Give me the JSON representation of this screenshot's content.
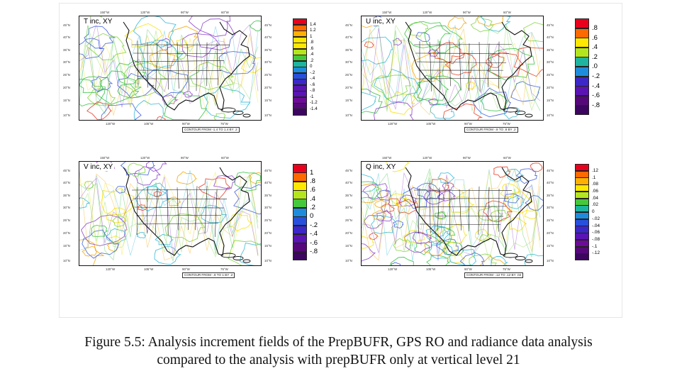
{
  "figure": {
    "lon_top": [
      "150°W",
      "120°W",
      "90°W",
      "60°W"
    ],
    "lon_bottom": [
      "120°W",
      "105°W",
      "90°W",
      "75°W"
    ],
    "lat_labels": [
      "45°N",
      "40°N",
      "35°N",
      "30°N",
      "25°N",
      "20°N",
      "15°N",
      "10°N"
    ],
    "panels": [
      {
        "title": "T inc, XY",
        "colorbar_labels": [
          "1.4",
          "1.2",
          "1",
          ".8",
          ".6",
          ".4",
          ".2",
          "0",
          "-.2",
          "-.4",
          "-.6",
          "-.8",
          "-1",
          "-1.2",
          "-1.4"
        ],
        "contour_info": "CONTOUR FROM -1.4 TO 1.4 BY .2"
      },
      {
        "title": "U inc, XY",
        "colorbar_labels": [
          ".8",
          ".6",
          ".4",
          ".2",
          ".0",
          "-.2",
          "-.4",
          "-.6",
          "-.8"
        ],
        "contour_info": "CONTOUR FROM -.8 TO .8 BY .2"
      },
      {
        "title": "V inc, XY",
        "colorbar_labels": [
          "1",
          ".8",
          ".6",
          ".4",
          ".2",
          "0",
          "-.2",
          "-.4",
          "-.6",
          "-.8"
        ],
        "contour_info": "CONTOUR FROM -.8 TO 1 BY .2"
      },
      {
        "title": "Q inc, XY",
        "colorbar_labels": [
          ".12",
          ".1",
          ".08",
          ".06",
          ".04",
          ".02",
          "0",
          "-.02",
          "-.04",
          "-.06",
          "-.08",
          "-.1",
          "-.12"
        ],
        "contour_info": "CONTOUR FROM -.12 TO .12 BY .02"
      }
    ],
    "colors": {
      "scale": [
        "#e8001c",
        "#ff6a00",
        "#ffb000",
        "#ffe800",
        "#b4e61e",
        "#46c83c",
        "#1eb4a0",
        "#1e8cdc",
        "#2850dc",
        "#3c28c8",
        "#5a14b4",
        "#6e0a9a",
        "#55087a",
        "#3c0560"
      ]
    }
  },
  "caption": {
    "line1": "Figure 5.5: Analysis increment fields of the PrepBUFR, GPS RO and radiance data analysis",
    "line2": "compared to the analysis with prepBUFR only at vertical level 21"
  }
}
